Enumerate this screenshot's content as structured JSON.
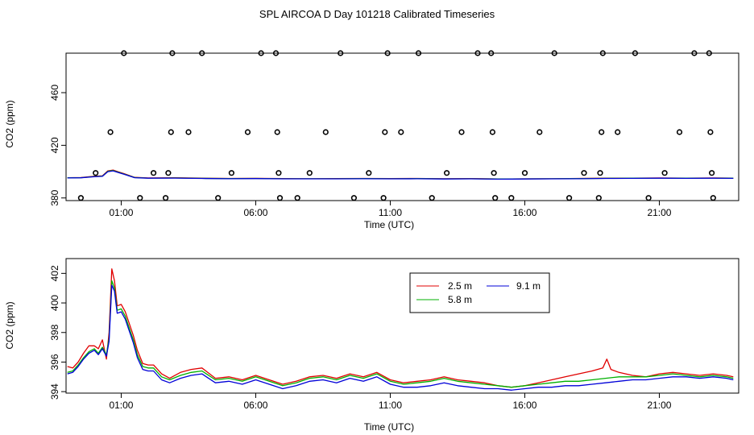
{
  "title": "SPL AIRCOA D  Day 101218  Calibrated Timeseries",
  "colors": {
    "s2_5": "#e00000",
    "s5_8": "#00b000",
    "s9_1": "#0000d8",
    "points": "#000000"
  },
  "chart_data": [
    {
      "type": "scatter",
      "xlabel": "Time (UTC)",
      "ylabel": "CO2 (ppm)",
      "x_tick_labels": [
        "01:00",
        "06:00",
        "11:00",
        "16:00",
        "21:00"
      ],
      "x_tick_hours": [
        1,
        6,
        11,
        16,
        21
      ],
      "y_ticks": [
        380,
        420,
        460
      ],
      "xlim": [
        -1.05,
        23.95
      ],
      "ylim": [
        378,
        490
      ],
      "grid": false,
      "legend": "none",
      "points": [
        [
          -0.5,
          380
        ],
        [
          0.05,
          399
        ],
        [
          0.6,
          430
        ],
        [
          1.1,
          490
        ],
        [
          1.7,
          380
        ],
        [
          2.2,
          399
        ],
        [
          2.65,
          380
        ],
        [
          2.75,
          399
        ],
        [
          2.85,
          430
        ],
        [
          2.9,
          490
        ],
        [
          3.5,
          430
        ],
        [
          4.0,
          490
        ],
        [
          4.6,
          380
        ],
        [
          5.1,
          399
        ],
        [
          5.7,
          430
        ],
        [
          6.2,
          490
        ],
        [
          6.75,
          490
        ],
        [
          6.8,
          430
        ],
        [
          6.85,
          399
        ],
        [
          6.9,
          380
        ],
        [
          7.55,
          380
        ],
        [
          8.0,
          399
        ],
        [
          8.6,
          430
        ],
        [
          9.15,
          490
        ],
        [
          9.65,
          380
        ],
        [
          10.2,
          399
        ],
        [
          10.75,
          380
        ],
        [
          10.8,
          430
        ],
        [
          10.9,
          490
        ],
        [
          11.4,
          430
        ],
        [
          12.05,
          490
        ],
        [
          12.55,
          380
        ],
        [
          13.1,
          399
        ],
        [
          13.65,
          430
        ],
        [
          14.25,
          490
        ],
        [
          14.75,
          490
        ],
        [
          14.8,
          430
        ],
        [
          14.85,
          399
        ],
        [
          14.9,
          380
        ],
        [
          15.5,
          380
        ],
        [
          16.0,
          399
        ],
        [
          16.55,
          430
        ],
        [
          17.1,
          490
        ],
        [
          17.65,
          380
        ],
        [
          18.2,
          399
        ],
        [
          18.75,
          380
        ],
        [
          18.8,
          399
        ],
        [
          18.85,
          430
        ],
        [
          18.9,
          490
        ],
        [
          19.45,
          430
        ],
        [
          20.1,
          490
        ],
        [
          20.6,
          380
        ],
        [
          21.2,
          399
        ],
        [
          21.75,
          430
        ],
        [
          22.3,
          490
        ],
        [
          22.85,
          490
        ],
        [
          22.9,
          430
        ],
        [
          22.95,
          399
        ],
        [
          23.0,
          380
        ]
      ],
      "series": [
        {
          "name": "2.5 m",
          "color_key": "s2_5",
          "x": [
            -1.0,
            -0.5,
            0.0,
            0.3,
            0.5,
            0.7,
            0.9,
            1.1,
            1.5,
            2.0,
            3.0,
            4.0,
            5.0,
            6.0,
            7.0,
            8.0,
            9.0,
            10.0,
            11.0,
            12.0,
            13.0,
            14.0,
            15.0,
            16.0,
            17.0,
            18.0,
            19.0,
            20.0,
            21.0,
            22.0,
            23.0,
            23.75
          ],
          "values": [
            395.4,
            395.5,
            396.5,
            396.8,
            400.6,
            401.2,
            399.8,
            398.5,
            395.6,
            395.2,
            395.3,
            395.0,
            394.8,
            394.9,
            394.7,
            394.6,
            394.7,
            394.8,
            394.7,
            394.8,
            394.6,
            394.7,
            394.4,
            394.5,
            394.6,
            394.8,
            395.0,
            395.1,
            395.2,
            395.1,
            395.2,
            395.1
          ]
        },
        {
          "name": "5.8 m",
          "color_key": "s5_8",
          "x": [
            -1.0,
            -0.5,
            0.0,
            0.3,
            0.5,
            0.7,
            0.9,
            1.1,
            1.5,
            2.0,
            3.0,
            4.0,
            5.0,
            6.0,
            7.0,
            8.0,
            9.0,
            10.0,
            11.0,
            12.0,
            13.0,
            14.0,
            15.0,
            16.0,
            17.0,
            18.0,
            19.0,
            20.0,
            21.0,
            22.0,
            23.0,
            23.75
          ],
          "values": [
            395.3,
            395.4,
            396.3,
            396.6,
            400.2,
            400.8,
            399.5,
            398.2,
            395.5,
            395.1,
            395.2,
            394.9,
            394.7,
            394.8,
            394.6,
            394.6,
            394.6,
            394.7,
            394.6,
            394.7,
            394.5,
            394.6,
            394.4,
            394.5,
            394.6,
            394.7,
            394.9,
            395.0,
            395.1,
            395.0,
            395.1,
            395.0
          ]
        },
        {
          "name": "9.1 m",
          "color_key": "s9_1",
          "x": [
            -1.0,
            -0.5,
            0.0,
            0.3,
            0.5,
            0.7,
            0.9,
            1.1,
            1.5,
            2.0,
            3.0,
            4.0,
            5.0,
            6.0,
            7.0,
            8.0,
            9.0,
            10.0,
            11.0,
            12.0,
            13.0,
            14.0,
            15.0,
            16.0,
            17.0,
            18.0,
            19.0,
            20.0,
            21.0,
            22.0,
            23.0,
            23.75
          ],
          "values": [
            395.2,
            395.3,
            396.1,
            396.4,
            400.0,
            400.6,
            399.3,
            398.0,
            395.4,
            395.0,
            395.1,
            394.8,
            394.6,
            394.7,
            394.5,
            394.5,
            394.5,
            394.6,
            394.5,
            394.6,
            394.4,
            394.5,
            394.3,
            394.4,
            394.5,
            394.6,
            394.8,
            394.9,
            395.0,
            394.9,
            395.0,
            394.9
          ]
        }
      ]
    },
    {
      "type": "line",
      "xlabel": "Time (UTC)",
      "ylabel": "CO2 (ppm)",
      "x_tick_labels": [
        "01:00",
        "06:00",
        "11:00",
        "16:00",
        "21:00"
      ],
      "x_tick_hours": [
        1,
        6,
        11,
        16,
        21
      ],
      "y_ticks": [
        394,
        396,
        398,
        400,
        402
      ],
      "xlim": [
        -1.05,
        23.95
      ],
      "ylim": [
        393.9,
        403.0
      ],
      "grid": false,
      "legend": "top-center",
      "series": [
        {
          "name": "2.5 m",
          "color_key": "s2_5",
          "x": [
            -1.0,
            -0.8,
            -0.6,
            -0.4,
            -0.2,
            0.0,
            0.15,
            0.3,
            0.45,
            0.55,
            0.65,
            0.75,
            0.85,
            1.0,
            1.15,
            1.3,
            1.45,
            1.6,
            1.8,
            2.0,
            2.2,
            2.5,
            2.8,
            3.2,
            3.6,
            4.0,
            4.5,
            5.0,
            5.5,
            6.0,
            6.5,
            7.0,
            7.5,
            8.0,
            8.5,
            9.0,
            9.5,
            10.0,
            10.5,
            11.0,
            11.5,
            12.0,
            12.5,
            13.0,
            13.5,
            14.0,
            14.5,
            15.0,
            15.5,
            16.0,
            16.5,
            17.0,
            17.5,
            18.0,
            18.5,
            18.9,
            19.05,
            19.2,
            19.5,
            20.0,
            20.5,
            21.0,
            21.5,
            22.0,
            22.5,
            23.0,
            23.5,
            23.75
          ],
          "values": [
            395.7,
            395.6,
            396.0,
            396.6,
            397.1,
            397.1,
            396.9,
            397.5,
            396.2,
            398.0,
            402.3,
            401.5,
            399.8,
            399.9,
            399.4,
            398.6,
            397.8,
            396.8,
            395.9,
            395.8,
            395.8,
            395.2,
            394.9,
            395.3,
            395.5,
            395.6,
            394.9,
            395.0,
            394.8,
            395.1,
            394.8,
            394.5,
            394.7,
            395.0,
            395.1,
            394.9,
            395.2,
            395.0,
            395.3,
            394.8,
            394.6,
            394.7,
            394.8,
            395.0,
            394.8,
            394.7,
            394.6,
            394.4,
            394.3,
            394.4,
            394.6,
            394.8,
            395.0,
            395.2,
            395.4,
            395.6,
            396.2,
            395.5,
            395.3,
            395.1,
            395.0,
            395.2,
            395.3,
            395.2,
            395.1,
            395.2,
            395.1,
            395.0
          ]
        },
        {
          "name": "5.8 m",
          "color_key": "s5_8",
          "x": [
            -1.0,
            -0.8,
            -0.6,
            -0.4,
            -0.2,
            0.0,
            0.15,
            0.3,
            0.45,
            0.55,
            0.65,
            0.75,
            0.85,
            1.0,
            1.15,
            1.3,
            1.45,
            1.6,
            1.8,
            2.0,
            2.2,
            2.5,
            2.8,
            3.2,
            3.6,
            4.0,
            4.5,
            5.0,
            5.5,
            6.0,
            6.5,
            7.0,
            7.5,
            8.0,
            8.5,
            9.0,
            9.5,
            10.0,
            10.5,
            11.0,
            11.5,
            12.0,
            12.5,
            13.0,
            13.5,
            14.0,
            14.5,
            15.0,
            15.5,
            16.0,
            16.5,
            17.0,
            17.5,
            18.0,
            18.5,
            19.0,
            19.5,
            20.0,
            20.5,
            21.0,
            21.5,
            22.0,
            22.5,
            23.0,
            23.5,
            23.75
          ],
          "values": [
            395.3,
            395.4,
            395.8,
            396.3,
            396.7,
            396.9,
            396.6,
            397.0,
            396.5,
            397.6,
            401.5,
            401.0,
            399.5,
            399.6,
            399.1,
            398.3,
            397.5,
            396.5,
            395.7,
            395.6,
            395.6,
            395.0,
            394.8,
            395.1,
            395.3,
            395.4,
            394.8,
            394.9,
            394.7,
            395.0,
            394.7,
            394.4,
            394.6,
            394.9,
            395.0,
            394.8,
            395.1,
            394.9,
            395.2,
            394.7,
            394.5,
            394.6,
            394.7,
            394.9,
            394.7,
            394.6,
            394.5,
            394.4,
            394.3,
            394.4,
            394.5,
            394.6,
            394.7,
            394.7,
            394.8,
            394.9,
            395.0,
            395.0,
            395.0,
            395.1,
            395.2,
            395.1,
            395.0,
            395.1,
            395.0,
            394.9
          ]
        },
        {
          "name": "9.1 m",
          "color_key": "s9_1",
          "x": [
            -1.0,
            -0.8,
            -0.6,
            -0.4,
            -0.2,
            0.0,
            0.15,
            0.3,
            0.45,
            0.55,
            0.65,
            0.75,
            0.85,
            1.0,
            1.15,
            1.3,
            1.45,
            1.6,
            1.8,
            2.0,
            2.2,
            2.5,
            2.8,
            3.2,
            3.6,
            4.0,
            4.5,
            5.0,
            5.5,
            6.0,
            6.5,
            7.0,
            7.5,
            8.0,
            8.5,
            9.0,
            9.5,
            10.0,
            10.5,
            11.0,
            11.5,
            12.0,
            12.5,
            13.0,
            13.5,
            14.0,
            14.5,
            15.0,
            15.5,
            16.0,
            16.5,
            17.0,
            17.5,
            18.0,
            18.5,
            19.0,
            19.5,
            20.0,
            20.5,
            21.0,
            21.5,
            22.0,
            22.5,
            23.0,
            23.5,
            23.75
          ],
          "values": [
            395.2,
            395.3,
            395.7,
            396.2,
            396.6,
            396.8,
            396.5,
            396.9,
            396.4,
            397.4,
            401.2,
            400.8,
            399.3,
            399.4,
            398.9,
            398.1,
            397.3,
            396.3,
            395.5,
            395.4,
            395.4,
            394.8,
            394.6,
            394.9,
            395.1,
            395.2,
            394.6,
            394.7,
            394.5,
            394.8,
            394.5,
            394.2,
            394.4,
            394.7,
            394.8,
            394.6,
            394.9,
            394.7,
            395.0,
            394.5,
            394.3,
            394.3,
            394.4,
            394.6,
            394.4,
            394.3,
            394.2,
            394.2,
            394.1,
            394.2,
            394.3,
            394.3,
            394.4,
            394.4,
            394.5,
            394.6,
            394.7,
            394.8,
            394.8,
            394.9,
            395.0,
            395.0,
            394.9,
            395.0,
            394.9,
            394.8
          ]
        }
      ]
    }
  ]
}
